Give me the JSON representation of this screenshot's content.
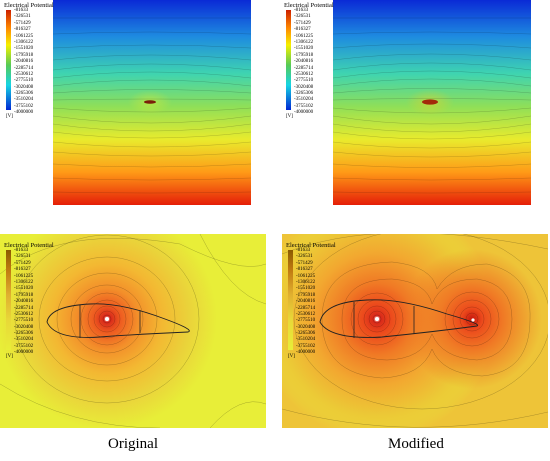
{
  "legend": {
    "title": "Electrical Potential",
    "unit": "[V]",
    "ticks": [
      "-81633",
      "-326531",
      "-571429",
      "-816327",
      "-1061225",
      "-1306122",
      "-1551020",
      "-1795918",
      "-2040816",
      "-2285714",
      "-2530612",
      "-2775510",
      "-3020408",
      "-3265306",
      "-3510204",
      "-3755102",
      "-4000000"
    ]
  },
  "captions": {
    "left": "Original",
    "right": "Modified"
  },
  "colors": {
    "bar_top": "#cc1f00",
    "bar_orange": "#ff8800",
    "bar_yellow": "#f6f000",
    "bar_green": "#57ca55",
    "bar_cyan": "#16d5e4",
    "bar_bottom": "#0026d4",
    "lower_background": "#e8ee38"
  },
  "panels": {
    "top_left": "Original",
    "top_right": "Modified",
    "bottom_left": "Original",
    "bottom_right": "Modified"
  }
}
